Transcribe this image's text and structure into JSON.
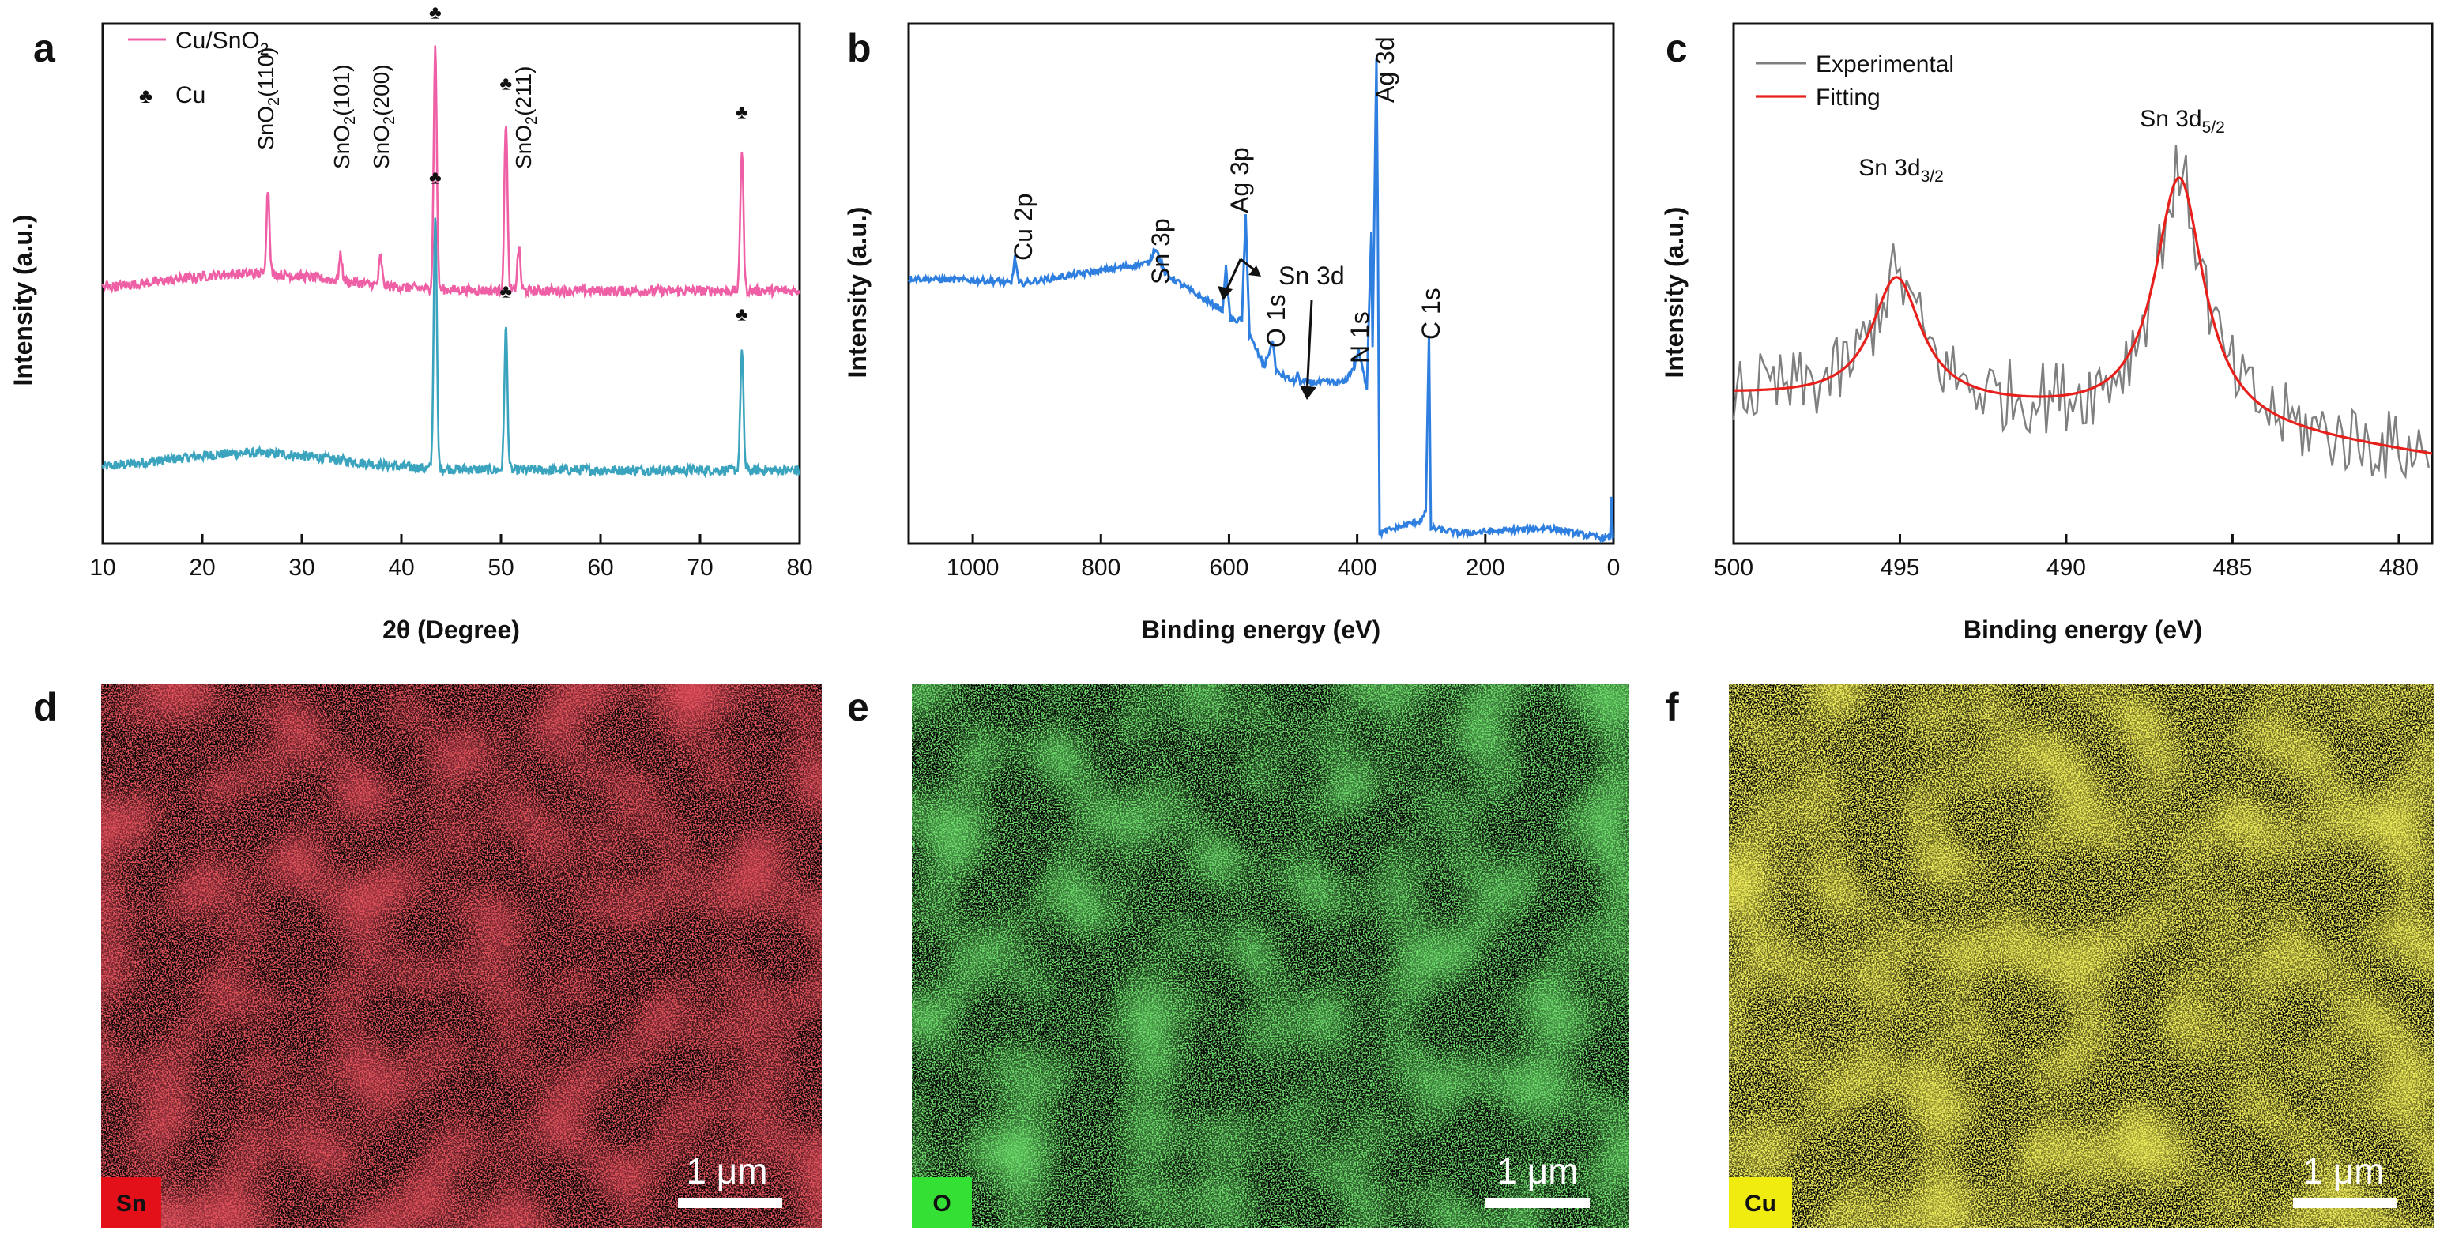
{
  "colors": {
    "cu_sno2": "#ef5fa6",
    "cu": "#3aa3be",
    "survey": "#2f7fe0",
    "experimental": "#7f7f7f",
    "fitting": "#e8201c",
    "sn_map": "#c4161c",
    "o_map": "#2bbd28",
    "cu_map": "#dcd61c",
    "sn_tag": "#e3101a",
    "o_tag": "#35e035",
    "cu_tag": "#f0ec10"
  },
  "panels": {
    "a": {
      "letter": "a"
    },
    "b": {
      "letter": "b"
    },
    "c": {
      "letter": "c"
    },
    "d": {
      "letter": "d",
      "element": "Sn",
      "scale_label": "1 μm"
    },
    "e": {
      "letter": "e",
      "element": "O",
      "scale_label": "1 μm"
    },
    "f": {
      "letter": "f",
      "element": "Cu",
      "scale_label": "1 μm"
    }
  },
  "chart_data": [
    {
      "panel": "a",
      "type": "line",
      "title": "",
      "xlabel": "2θ (Degree)",
      "ylabel": "Intensity (a.u.)",
      "xlim": [
        10,
        80
      ],
      "xticks": [
        10,
        20,
        30,
        40,
        50,
        60,
        70,
        80
      ],
      "legend": [
        {
          "label_main": "Cu/SnO",
          "label_sub": "2",
          "marker": "line"
        },
        {
          "label_main": "Cu",
          "label_sub": "",
          "marker": "♣"
        }
      ],
      "series": [
        {
          "name": "Cu/SnO2",
          "baseline": 6.4,
          "peaks": [
            [
              26.6,
              3.0
            ],
            [
              33.9,
              0.9
            ],
            [
              37.9,
              1.0
            ],
            [
              43.4,
              8.5
            ],
            [
              50.5,
              6.0
            ],
            [
              51.8,
              1.5
            ],
            [
              74.2,
              5.0
            ]
          ]
        },
        {
          "name": "Cu",
          "baseline": 1.0,
          "peaks": [
            [
              43.4,
              9.0
            ],
            [
              50.5,
              5.0
            ],
            [
              74.2,
              4.2
            ]
          ]
        }
      ],
      "annotations": [
        {
          "text_main": "SnO",
          "text_sub": "2",
          "text_tail": "(110)",
          "x": 26.6
        },
        {
          "text_main": "SnO",
          "text_sub": "2",
          "text_tail": "(101)",
          "x": 33.9
        },
        {
          "text_main": "SnO",
          "text_sub": "2",
          "text_tail": "(200)",
          "x": 37.9
        },
        {
          "text_main": "SnO",
          "text_sub": "2",
          "text_tail": "(211)",
          "x": 51.8
        }
      ],
      "cu_markers": [
        {
          "x": 43.4,
          "series": "Cu/SnO2",
          "symbol": "♣"
        },
        {
          "x": 50.5,
          "series": "Cu/SnO2",
          "symbol": "♣"
        },
        {
          "x": 74.2,
          "series": "Cu/SnO2",
          "symbol": "♣"
        },
        {
          "x": 43.4,
          "series": "Cu",
          "symbol": "♣"
        },
        {
          "x": 50.5,
          "series": "Cu",
          "symbol": "♣"
        },
        {
          "x": 74.2,
          "series": "Cu",
          "symbol": "♣"
        }
      ]
    },
    {
      "panel": "b",
      "type": "line",
      "title": "",
      "xlabel": "Binding energy (eV)",
      "ylabel": "Intensity (a.u.)",
      "xlim": [
        1100,
        0
      ],
      "xticks": [
        1000,
        800,
        600,
        400,
        200,
        0
      ],
      "ylim": [
        0,
        10
      ],
      "anchors": [
        [
          1100,
          5.1
        ],
        [
          960,
          5.05
        ],
        [
          940,
          5.0
        ],
        [
          934,
          5.5
        ],
        [
          928,
          5.0
        ],
        [
          800,
          5.25
        ],
        [
          725,
          5.4
        ],
        [
          715,
          5.7
        ],
        [
          700,
          5.2
        ],
        [
          640,
          4.7
        ],
        [
          610,
          4.5
        ],
        [
          605,
          5.3
        ],
        [
          598,
          4.3
        ],
        [
          580,
          4.3
        ],
        [
          574,
          6.3
        ],
        [
          568,
          4.0
        ],
        [
          545,
          3.4
        ],
        [
          532,
          3.9
        ],
        [
          526,
          3.3
        ],
        [
          497,
          3.1
        ],
        [
          493,
          3.3
        ],
        [
          489,
          3.1
        ],
        [
          420,
          3.1
        ],
        [
          405,
          3.4
        ],
        [
          398,
          3.7
        ],
        [
          385,
          3.0
        ],
        [
          378,
          6.0
        ],
        [
          376,
          3.8
        ],
        [
          370,
          9.3
        ],
        [
          368,
          6.5
        ],
        [
          365,
          0.2
        ],
        [
          300,
          0.45
        ],
        [
          293,
          0.6
        ],
        [
          288,
          4.0
        ],
        [
          285,
          0.3
        ],
        [
          240,
          0.2
        ],
        [
          100,
          0.3
        ],
        [
          40,
          0.15
        ],
        [
          5,
          0.1
        ],
        [
          3,
          0.9
        ],
        [
          1,
          0.1
        ],
        [
          0,
          0.1
        ]
      ],
      "annotations": [
        {
          "text": "Cu 2p",
          "x": 934,
          "y": 5.5
        },
        {
          "text": "Sn 3p",
          "x": 715,
          "y": 5.7
        },
        {
          "text": "Ag 3p",
          "x": 588,
          "y": 6.3
        },
        {
          "text": "Sn 3d",
          "x": 493,
          "y": 3.3
        },
        {
          "text": "O 1s",
          "x": 532,
          "y": 3.9
        },
        {
          "text": "N 1s",
          "x": 398,
          "y": 3.7
        },
        {
          "text": "Ag 3d",
          "x": 370,
          "y": 9.3
        },
        {
          "text": "C 1s",
          "x": 288,
          "y": 4.0
        }
      ]
    },
    {
      "panel": "c",
      "type": "line",
      "title": "",
      "xlabel": "Binding energy (eV)",
      "ylabel": "Intensity (a.u.)",
      "xlim": [
        500,
        479
      ],
      "xticks": [
        500,
        495,
        490,
        485,
        480
      ],
      "legend": [
        {
          "label": "Experimental",
          "color_key": "experimental"
        },
        {
          "label": "Fitting",
          "color_key": "fitting"
        }
      ],
      "series": [
        {
          "name": "Experimental",
          "noise_amplitude": 0.9
        },
        {
          "name": "Fitting",
          "baseline_start": 3.6,
          "baseline_end": 2.1,
          "peaks": [
            [
              495.1,
              3.0,
              0.9
            ],
            [
              486.6,
              6.0,
              0.9
            ]
          ]
        }
      ],
      "annotations": [
        {
          "text_main": "Sn 3d",
          "text_sub": "3/2",
          "x": 495.1
        },
        {
          "text_main": "Sn 3d",
          "text_sub": "5/2",
          "x": 486.6
        }
      ]
    }
  ]
}
